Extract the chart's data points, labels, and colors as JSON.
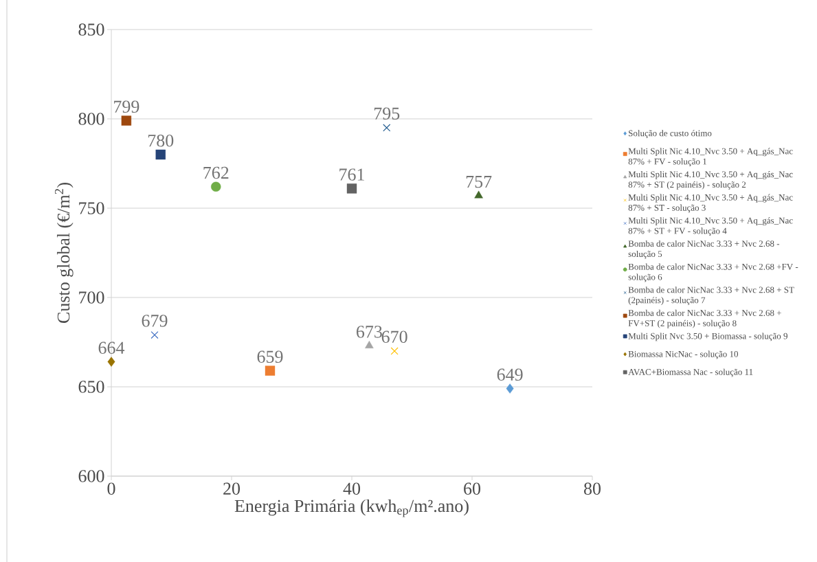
{
  "chart_data": {
    "type": "scatter",
    "xlabel": "Energia Primária (kwh$_{ep}$/m².ano)",
    "ylabel": "Custo global (€/m$^{2}$)",
    "xlim": [
      0,
      80
    ],
    "ylim": [
      600,
      850
    ],
    "xticks": [
      0,
      20,
      40,
      60,
      80
    ],
    "yticks": [
      600,
      650,
      700,
      750,
      800,
      850
    ],
    "grid": "y",
    "legend": "right",
    "data_labels": true,
    "series": [
      {
        "name": "Solução de custo ótimo",
        "color": "#5b9bd5",
        "marker": "diamond",
        "x": [
          66.3
        ],
        "values": [
          649
        ]
      },
      {
        "name": "Multi Split Nic 4.10_Nvc 3.50 + Aq_gás_Nac 87% + FV - solução 1",
        "color": "#ed7d31",
        "marker": "square",
        "x": [
          26.4
        ],
        "values": [
          659
        ]
      },
      {
        "name": "Multi Split Nic 4.10_Nvc 3.50 + Aq_gás_Nac 87% + ST (2 painéis) - solução 2",
        "color": "#a5a5a5",
        "marker": "triangle",
        "x": [
          42.9
        ],
        "values": [
          673
        ]
      },
      {
        "name": "Multi Split Nic 4.10_Nvc 3.50 + Aq_gás_Nac 87% + ST - solução 3",
        "color": "#ffc000",
        "marker": "cross",
        "x": [
          47.1
        ],
        "values": [
          670
        ]
      },
      {
        "name": "Multi Split Nic 4.10_Nvc 3.50 + Aq_gás_Nac 87% + ST + FV - solução 4",
        "color": "#4472c4",
        "marker": "cross",
        "x": [
          7.2
        ],
        "values": [
          679
        ]
      },
      {
        "name": "Bomba de calor NicNac 3.33 + Nvc 2.68 - solução 5",
        "color": "#43682b",
        "marker": "triangle",
        "x": [
          61.1
        ],
        "values": [
          757
        ]
      },
      {
        "name": "Bomba de calor NicNac 3.33 + Nvc 2.68 +FV - solução 6",
        "color": "#70ad47",
        "marker": "circle",
        "x": [
          17.4
        ],
        "values": [
          762
        ]
      },
      {
        "name": "Bomba de calor NicNac 3.33 + Nvc 2.68 + ST (2painéis) - solução 7",
        "color": "#255e91",
        "marker": "cross",
        "x": [
          45.8
        ],
        "values": [
          795
        ]
      },
      {
        "name": "Bomba de calor NicNac 3.33 + Nvc 2.68 + FV+ST (2 painéis) - solução 8",
        "color": "#9e480e",
        "marker": "square",
        "x": [
          2.5
        ],
        "values": [
          799
        ]
      },
      {
        "name": "Multi Split Nvc 3.50 + Biomassa - solução 9",
        "color": "#264478",
        "marker": "square",
        "x": [
          8.2
        ],
        "values": [
          780
        ]
      },
      {
        "name": "Biomassa NicNac - solução 10",
        "color": "#997300",
        "marker": "diamond",
        "x": [
          0
        ],
        "values": [
          664
        ]
      },
      {
        "name": "AVAC+Biomassa Nac - solução 11",
        "color": "#636363",
        "marker": "square",
        "x": [
          40
        ],
        "values": [
          761
        ]
      }
    ]
  }
}
